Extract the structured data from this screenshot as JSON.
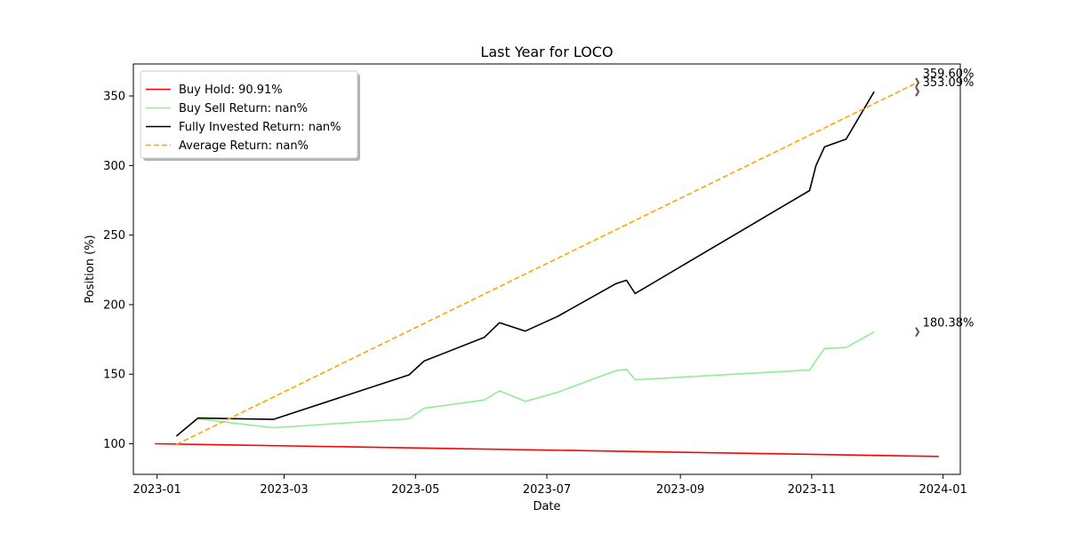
{
  "chart_data": {
    "type": "line",
    "title": "Last Year for LOCO",
    "xlabel": "Date",
    "ylabel": "Position (%)",
    "xlim": [
      "2022-12-21",
      "2024-01-09"
    ],
    "ylim": [
      78,
      373
    ],
    "x_ticks": [
      "2023-01",
      "2023-03",
      "2023-05",
      "2023-07",
      "2023-09",
      "2023-11",
      "2024-01"
    ],
    "x_tick_dates": [
      "2023-01-01",
      "2023-03-01",
      "2023-05-01",
      "2023-07-01",
      "2023-09-01",
      "2023-11-01",
      "2024-01-01"
    ],
    "y_ticks": [
      100,
      150,
      200,
      250,
      300,
      350
    ],
    "grid": false,
    "legend_position": "top-left",
    "series": [
      {
        "name": "Buy Hold: 90.91%",
        "color": "#ff0000",
        "dash": "solid",
        "points": [
          [
            "2022-12-31",
            100
          ],
          [
            "2023-12-30",
            90.91
          ]
        ]
      },
      {
        "name": "Buy Sell Return: nan%",
        "color": "#90ee90",
        "dash": "solid",
        "points": [
          [
            "2023-01-20",
            118
          ],
          [
            "2023-02-24",
            111.5
          ],
          [
            "2023-04-28",
            118
          ],
          [
            "2023-05-05",
            125.5
          ],
          [
            "2023-06-02",
            131.5
          ],
          [
            "2023-06-09",
            138
          ],
          [
            "2023-06-21",
            130.5
          ],
          [
            "2023-07-06",
            137
          ],
          [
            "2023-08-02",
            152.5
          ],
          [
            "2023-08-07",
            153.5
          ],
          [
            "2023-08-11",
            146
          ],
          [
            "2023-10-31",
            153
          ],
          [
            "2023-11-03",
            160
          ],
          [
            "2023-11-07",
            168.5
          ],
          [
            "2023-11-17",
            169.2
          ],
          [
            "2023-11-30",
            180.38
          ]
        ]
      },
      {
        "name": "Fully Invested Return: nan%",
        "color": "#000000",
        "dash": "solid",
        "points": [
          [
            "2023-01-10",
            105.5
          ],
          [
            "2023-01-20",
            118.5
          ],
          [
            "2023-02-24",
            117.5
          ],
          [
            "2023-04-28",
            149.5
          ],
          [
            "2023-05-05",
            159.5
          ],
          [
            "2023-06-02",
            176.5
          ],
          [
            "2023-06-09",
            187
          ],
          [
            "2023-06-21",
            181
          ],
          [
            "2023-07-06",
            191.5
          ],
          [
            "2023-08-02",
            215
          ],
          [
            "2023-08-07",
            217.5
          ],
          [
            "2023-08-11",
            208
          ],
          [
            "2023-10-31",
            282
          ],
          [
            "2023-11-03",
            300
          ],
          [
            "2023-11-07",
            313.5
          ],
          [
            "2023-11-17",
            319
          ],
          [
            "2023-11-30",
            353.09
          ]
        ]
      },
      {
        "name": "Average Return: nan%",
        "color": "#ffa500",
        "dash": "dashed",
        "points": [
          [
            "2023-01-10",
            99.5
          ],
          [
            "2023-12-20",
            359.6
          ]
        ]
      }
    ],
    "annotations": [
      {
        "text": "359.60%",
        "x": "2023-12-20",
        "y": 359.6
      },
      {
        "text": "353.09%",
        "x": "2023-12-20",
        "y": 353.09
      },
      {
        "text": "180.38%",
        "x": "2023-12-20",
        "y": 180.38
      }
    ]
  }
}
